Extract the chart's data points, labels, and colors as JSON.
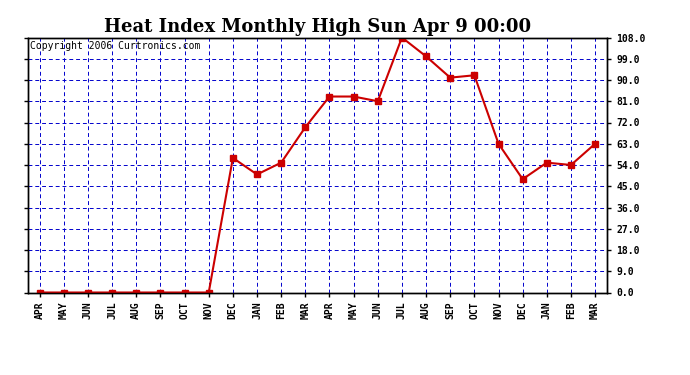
{
  "title": "Heat Index Monthly High Sun Apr 9 00:00",
  "copyright": "Copyright 2006 Curtronics.com",
  "categories": [
    "APR",
    "MAY",
    "JUN",
    "JUL",
    "AUG",
    "SEP",
    "OCT",
    "NOV",
    "DEC",
    "JAN",
    "FEB",
    "MAR",
    "APR",
    "MAY",
    "JUN",
    "JUL",
    "AUG",
    "SEP",
    "OCT",
    "NOV",
    "DEC",
    "JAN",
    "FEB",
    "MAR"
  ],
  "values": [
    0,
    0,
    0,
    0,
    0,
    0,
    0,
    0,
    57,
    50,
    55,
    70,
    83,
    83,
    81,
    108,
    100,
    91,
    92,
    63,
    48,
    55,
    54,
    63
  ],
  "line_color": "#cc0000",
  "marker_color": "#cc0000",
  "plot_bg_color": "#ffffff",
  "outer_bg_color": "#ffffff",
  "grid_color": "#0000cc",
  "axis_color": "#000000",
  "ylim": [
    0,
    108
  ],
  "yticks": [
    0,
    9,
    18,
    27,
    36,
    45,
    54,
    63,
    72,
    81,
    90,
    99,
    108
  ],
  "ytick_labels": [
    "0.0",
    "9.0",
    "18.0",
    "27.0",
    "36.0",
    "45.0",
    "54.0",
    "63.0",
    "72.0",
    "81.0",
    "90.0",
    "99.0",
    "108.0"
  ],
  "title_fontsize": 13,
  "copyright_fontsize": 7,
  "tick_fontsize": 7,
  "marker_size": 4
}
